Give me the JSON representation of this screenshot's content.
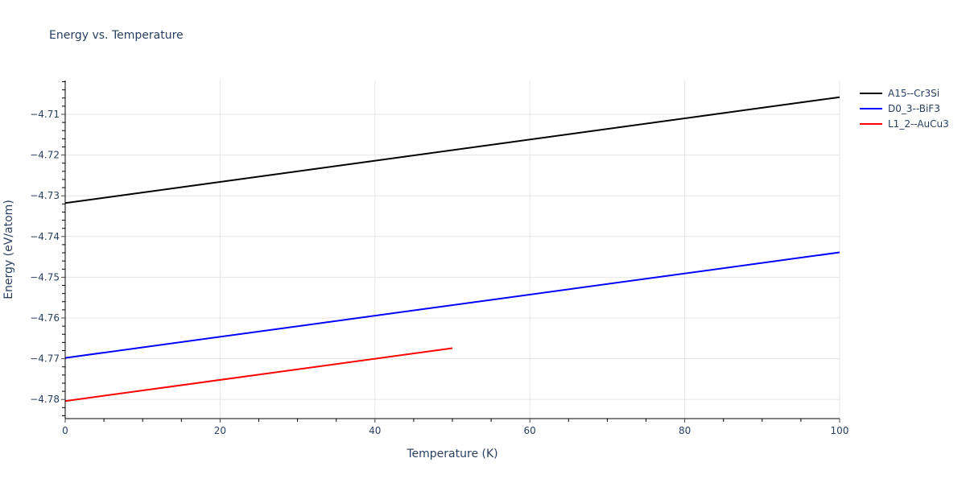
{
  "chart_data": {
    "type": "line",
    "title": "Energy vs. Temperature",
    "xlabel": "Temperature (K)",
    "ylabel": "Energy (eV/atom)",
    "xlim": [
      0,
      100
    ],
    "ylim": [
      -4.7847,
      -4.7017
    ],
    "x_ticks": [
      0,
      20,
      40,
      60,
      80,
      100
    ],
    "x_tick_labels": [
      "0",
      "20",
      "40",
      "60",
      "80",
      "100"
    ],
    "y_ticks": [
      -4.71,
      -4.72,
      -4.73,
      -4.74,
      -4.75,
      -4.76,
      -4.77,
      -4.78
    ],
    "y_tick_labels": [
      "−4.71",
      "−4.72",
      "−4.73",
      "−4.74",
      "−4.75",
      "−4.76",
      "−4.77",
      "−4.78"
    ],
    "grid": true,
    "legend_position": "right",
    "series": [
      {
        "name": "A15--Cr3Si",
        "color": "#000000",
        "x": [
          0,
          100
        ],
        "y": [
          -4.7318,
          -4.7058
        ]
      },
      {
        "name": "D0_3--BiF3",
        "color": "#0000ff",
        "x": [
          0,
          100
        ],
        "y": [
          -4.7698,
          -4.7439
        ]
      },
      {
        "name": "L1_2--AuCu3",
        "color": "#ff0000",
        "x": [
          0,
          50
        ],
        "y": [
          -4.7804,
          -4.7674
        ]
      }
    ]
  }
}
